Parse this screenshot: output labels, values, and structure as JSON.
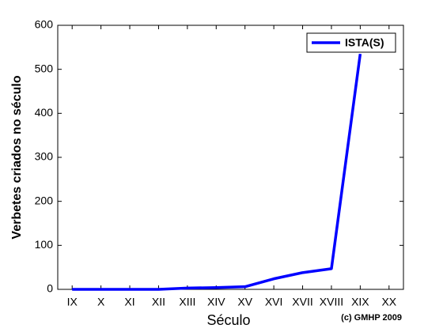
{
  "chart_data": {
    "type": "line",
    "x_label": "Século",
    "y_label": "Verbetes criados no século",
    "annotation": "(c) GMHP 2009",
    "categories": [
      "IX",
      "X",
      "XI",
      "XII",
      "XIII",
      "XIV",
      "XV",
      "XVI",
      "XVII",
      "XVIII",
      "XIX",
      "XX"
    ],
    "series": [
      {
        "name": "ISTA(S)",
        "color": "#0000ff",
        "values": [
          0,
          0,
          0,
          0,
          3,
          4,
          6,
          24,
          38,
          47,
          535,
          null
        ]
      }
    ],
    "ylim": [
      0,
      600
    ],
    "yticks": [
      0,
      100,
      200,
      300,
      400,
      500,
      600
    ],
    "grid": false,
    "legend": "upper right"
  }
}
